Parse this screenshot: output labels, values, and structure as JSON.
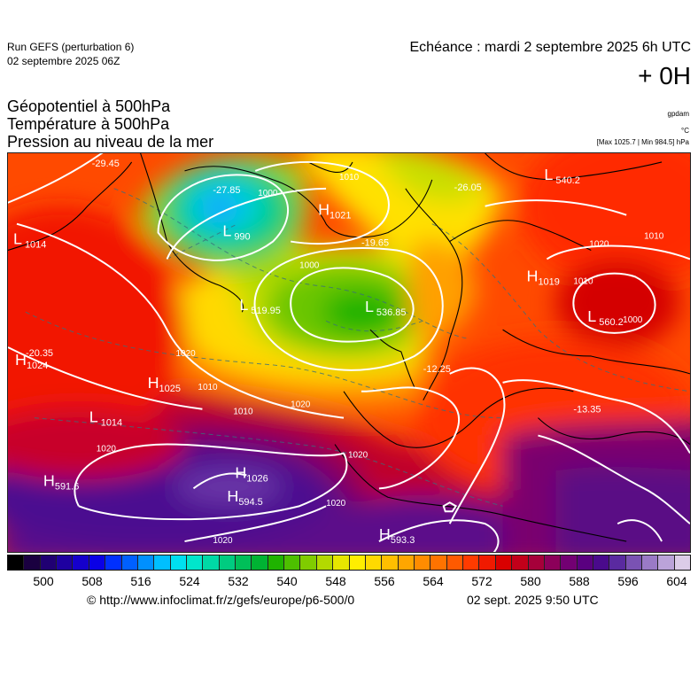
{
  "header": {
    "run_title": "Run GEFS (perturbation 6)",
    "run_date": "02 septembre 2025 06Z",
    "echeance": "Echéance : mardi 2 septembre 2025 6h UTC",
    "offset": "+ 0H"
  },
  "titles": {
    "line1": "Géopotentiel à 500hPa",
    "line2": "Température à 500hPa",
    "line3": "Pression au niveau de la mer"
  },
  "units": {
    "geopotential": "gpdam",
    "temperature": "°C",
    "pressure_range": "[Max 1025.7 | Min 984.5] hPa"
  },
  "map": {
    "pressure_centers": [
      {
        "kind": "L",
        "value": "1014"
      },
      {
        "kind": "L",
        "value": "990"
      },
      {
        "kind": "H",
        "value": "1021"
      },
      {
        "kind": "L",
        "value": "519.95"
      },
      {
        "kind": "L",
        "value": "536.85"
      },
      {
        "kind": "H",
        "value": "1025"
      },
      {
        "kind": "L",
        "value": "1014"
      },
      {
        "kind": "H",
        "value": "591.6"
      },
      {
        "kind": "H",
        "value": "1026"
      },
      {
        "kind": "H",
        "value": "594.5"
      },
      {
        "kind": "H",
        "value": "593.3"
      },
      {
        "kind": "H",
        "value": "1019"
      },
      {
        "kind": "L",
        "value": "560.2"
      },
      {
        "kind": "H",
        "value": "1024"
      },
      {
        "kind": "L",
        "value": "540.2"
      }
    ],
    "isobar_labels": [
      "1000",
      "1010",
      "1000",
      "1010",
      "1020",
      "1020",
      "1010",
      "1020",
      "1020",
      "1020",
      "1020",
      "1000",
      "1010",
      "1010",
      "1020"
    ],
    "temperature_labels": [
      "-29.45",
      "-27.85",
      "-19.65",
      "-26.05",
      "-20.35",
      "-12.25",
      "-13.35"
    ]
  },
  "colorbar": {
    "colors": [
      "#000000",
      "#1a0040",
      "#200073",
      "#1e00a0",
      "#1500cc",
      "#0a00e6",
      "#0030ff",
      "#0060ff",
      "#0090ff",
      "#00bfff",
      "#00e0f0",
      "#00e6cc",
      "#00d9a6",
      "#00cc80",
      "#00bf59",
      "#00b333",
      "#1fb300",
      "#4dbf00",
      "#80cc00",
      "#b3d900",
      "#e6e600",
      "#ffee00",
      "#ffd900",
      "#ffbf00",
      "#ffa600",
      "#ff8c00",
      "#ff7300",
      "#ff5a00",
      "#ff3b00",
      "#f01a00",
      "#d90000",
      "#c2001a",
      "#a6003a",
      "#8c005a",
      "#730073",
      "#5a0080",
      "#4a0a8c",
      "#5a2aa0",
      "#7a52b3",
      "#9a7ac6",
      "#bba3d9",
      "#dccce8"
    ],
    "tick_labels": [
      "500",
      "508",
      "516",
      "524",
      "532",
      "540",
      "548",
      "556",
      "564",
      "572",
      "580",
      "588",
      "596",
      "604"
    ]
  },
  "footer": {
    "url": "© http://www.infoclimat.fr/z/gefs/europe/p6-500/0",
    "timestamp": "02 sept. 2025  9:50 UTC"
  }
}
